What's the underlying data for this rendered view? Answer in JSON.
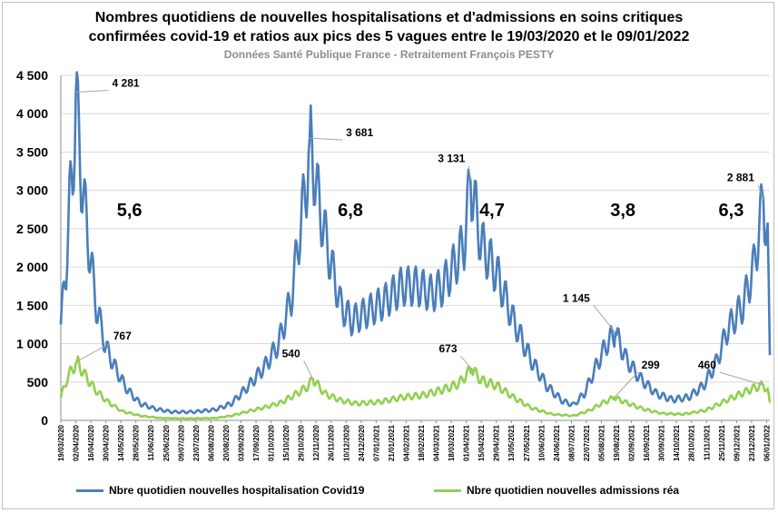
{
  "chart_data": {
    "type": "line",
    "title_line1": "Nombres quotidiens de nouvelles hospitalisations et d'admissions en soins critiques",
    "title_line2": "confirmées covid-19 et ratios aux pics des 5 vagues entre le 19/03/2020 et le 09/01/2022",
    "subtitle": "Données Santé Publique France - Retraitement François PESTY",
    "ylim": [
      0,
      4500
    ],
    "yticks": [
      0,
      500,
      1000,
      1500,
      2000,
      2500,
      3000,
      3500,
      4000,
      4500
    ],
    "ytick_labels": [
      "0",
      "500",
      "1 000",
      "1 500",
      "2 000",
      "2 500",
      "3 000",
      "3 500",
      "4 000",
      "4 500"
    ],
    "x_start": "2020-03-19",
    "x_end": "2022-01-09",
    "x_tick_labels": [
      "19/03/2020",
      "02/04/2020",
      "16/04/2020",
      "30/04/2020",
      "14/05/2020",
      "28/05/2020",
      "11/06/2020",
      "25/06/2020",
      "09/07/2020",
      "23/07/2020",
      "06/08/2020",
      "20/08/2020",
      "03/09/2020",
      "17/09/2020",
      "01/10/2020",
      "15/10/2020",
      "29/10/2020",
      "12/11/2020",
      "26/11/2020",
      "10/12/2020",
      "24/12/2020",
      "07/01/2021",
      "21/01/2021",
      "04/02/2021",
      "18/02/2021",
      "04/03/2021",
      "18/03/2021",
      "01/04/2021",
      "15/04/2021",
      "29/04/2021",
      "13/05/2021",
      "27/05/2021",
      "10/06/2021",
      "24/06/2021",
      "08/07/2021",
      "22/07/2021",
      "05/08/2021",
      "19/08/2021",
      "02/09/2021",
      "16/09/2021",
      "30/09/2021",
      "14/10/2021",
      "28/10/2021",
      "11/11/2021",
      "25/11/2021",
      "09/12/2021",
      "23/12/2021",
      "06/01/2022"
    ],
    "grid": true,
    "legend_position": "bottom",
    "series": [
      {
        "name": "Nbre quotidien nouvelles hospitalisation Covid19",
        "color": "#4a7ebb",
        "anchors": [
          [
            "2020-03-19",
            1250
          ],
          [
            "2020-03-24",
            2000
          ],
          [
            "2020-03-27",
            2850
          ],
          [
            "2020-03-30",
            3150
          ],
          [
            "2020-04-02",
            4281
          ],
          [
            "2020-04-07",
            3200
          ],
          [
            "2020-04-14",
            2300
          ],
          [
            "2020-04-21",
            1500
          ],
          [
            "2020-04-30",
            950
          ],
          [
            "2020-05-10",
            650
          ],
          [
            "2020-05-20",
            400
          ],
          [
            "2020-06-01",
            220
          ],
          [
            "2020-06-15",
            150
          ],
          [
            "2020-07-01",
            110
          ],
          [
            "2020-07-20",
            110
          ],
          [
            "2020-08-10",
            140
          ],
          [
            "2020-08-25",
            220
          ],
          [
            "2020-09-10",
            450
          ],
          [
            "2020-09-25",
            700
          ],
          [
            "2020-10-08",
            1000
          ],
          [
            "2020-10-20",
            1600
          ],
          [
            "2020-10-28",
            2500
          ],
          [
            "2020-11-03",
            3100
          ],
          [
            "2020-11-06",
            3681
          ],
          [
            "2020-11-15",
            2800
          ],
          [
            "2020-11-25",
            2100
          ],
          [
            "2020-12-05",
            1500
          ],
          [
            "2020-12-15",
            1300
          ],
          [
            "2020-12-28",
            1400
          ],
          [
            "2021-01-15",
            1550
          ],
          [
            "2021-01-31",
            1750
          ],
          [
            "2021-02-15",
            1750
          ],
          [
            "2021-02-28",
            1650
          ],
          [
            "2021-03-10",
            1750
          ],
          [
            "2021-03-20",
            2000
          ],
          [
            "2021-03-30",
            2300
          ],
          [
            "2021-04-05",
            3131
          ],
          [
            "2021-04-15",
            2300
          ],
          [
            "2021-04-30",
            1900
          ],
          [
            "2021-05-15",
            1300
          ],
          [
            "2021-05-31",
            800
          ],
          [
            "2021-06-15",
            450
          ],
          [
            "2021-06-30",
            250
          ],
          [
            "2021-07-10",
            200
          ],
          [
            "2021-07-20",
            350
          ],
          [
            "2021-07-31",
            700
          ],
          [
            "2021-08-10",
            1000
          ],
          [
            "2021-08-18",
            1145
          ],
          [
            "2021-08-28",
            800
          ],
          [
            "2021-09-10",
            550
          ],
          [
            "2021-09-25",
            350
          ],
          [
            "2021-10-10",
            270
          ],
          [
            "2021-10-25",
            300
          ],
          [
            "2021-11-08",
            450
          ],
          [
            "2021-11-20",
            750
          ],
          [
            "2021-12-01",
            1200
          ],
          [
            "2021-12-15",
            1500
          ],
          [
            "2021-12-25",
            2000
          ],
          [
            "2022-01-03",
            2881
          ],
          [
            "2022-01-07",
            2300
          ],
          [
            "2022-01-09",
            850
          ]
        ],
        "weekly_amplitude": 0.3
      },
      {
        "name": "Nbre quotidien nouvelles admissions réa",
        "color": "#92d050",
        "anchors": [
          [
            "2020-03-19",
            300
          ],
          [
            "2020-03-25",
            550
          ],
          [
            "2020-03-31",
            700
          ],
          [
            "2020-04-03",
            767
          ],
          [
            "2020-04-10",
            600
          ],
          [
            "2020-04-20",
            400
          ],
          [
            "2020-05-01",
            250
          ],
          [
            "2020-05-15",
            120
          ],
          [
            "2020-06-01",
            60
          ],
          [
            "2020-06-20",
            30
          ],
          [
            "2020-07-15",
            25
          ],
          [
            "2020-08-10",
            30
          ],
          [
            "2020-08-25",
            60
          ],
          [
            "2020-09-10",
            120
          ],
          [
            "2020-09-25",
            170
          ],
          [
            "2020-10-10",
            230
          ],
          [
            "2020-10-25",
            350
          ],
          [
            "2020-11-05",
            450
          ],
          [
            "2020-11-09",
            540
          ],
          [
            "2020-11-20",
            350
          ],
          [
            "2020-12-05",
            260
          ],
          [
            "2020-12-20",
            220
          ],
          [
            "2021-01-10",
            240
          ],
          [
            "2021-01-31",
            300
          ],
          [
            "2021-02-20",
            330
          ],
          [
            "2021-03-10",
            400
          ],
          [
            "2021-03-25",
            480
          ],
          [
            "2021-04-06",
            673
          ],
          [
            "2021-04-15",
            520
          ],
          [
            "2021-04-30",
            450
          ],
          [
            "2021-05-15",
            300
          ],
          [
            "2021-06-01",
            160
          ],
          [
            "2021-06-20",
            80
          ],
          [
            "2021-07-10",
            60
          ],
          [
            "2021-07-25",
            130
          ],
          [
            "2021-08-05",
            220
          ],
          [
            "2021-08-17",
            299
          ],
          [
            "2021-08-30",
            220
          ],
          [
            "2021-09-15",
            140
          ],
          [
            "2021-10-01",
            90
          ],
          [
            "2021-10-20",
            80
          ],
          [
            "2021-11-10",
            130
          ],
          [
            "2021-11-25",
            230
          ],
          [
            "2021-12-10",
            330
          ],
          [
            "2021-12-25",
            420
          ],
          [
            "2022-01-03",
            460
          ],
          [
            "2022-01-07",
            380
          ],
          [
            "2022-01-09",
            230
          ]
        ],
        "weekly_amplitude": 0.25
      }
    ],
    "peak_labels": [
      {
        "series": 0,
        "date": "2020-04-02",
        "value": 4281,
        "label": "4 281"
      },
      {
        "series": 0,
        "date": "2020-11-06",
        "value": 3681,
        "label": "3 681"
      },
      {
        "series": 0,
        "date": "2021-04-05",
        "value": 3131,
        "label": "3 131"
      },
      {
        "series": 0,
        "date": "2021-08-18",
        "value": 1145,
        "label": "1 145"
      },
      {
        "series": 0,
        "date": "2022-01-03",
        "value": 2881,
        "label": "2 881"
      },
      {
        "series": 1,
        "date": "2020-04-03",
        "value": 767,
        "label": "767"
      },
      {
        "series": 1,
        "date": "2020-11-09",
        "value": 540,
        "label": "540"
      },
      {
        "series": 1,
        "date": "2021-04-06",
        "value": 673,
        "label": "673"
      },
      {
        "series": 1,
        "date": "2021-08-17",
        "value": 299,
        "label": "299"
      },
      {
        "series": 1,
        "date": "2022-01-03",
        "value": 460,
        "label": "460"
      }
    ],
    "wave_ratios": [
      {
        "label": "5,6",
        "date": "2020-05-22",
        "value": 2750
      },
      {
        "label": "6,8",
        "date": "2020-12-14",
        "value": 2750
      },
      {
        "label": "4,7",
        "date": "2021-04-25",
        "value": 2750
      },
      {
        "label": "3,8",
        "date": "2021-08-25",
        "value": 2750
      },
      {
        "label": "6,3",
        "date": "2021-12-04",
        "value": 2750
      }
    ]
  }
}
